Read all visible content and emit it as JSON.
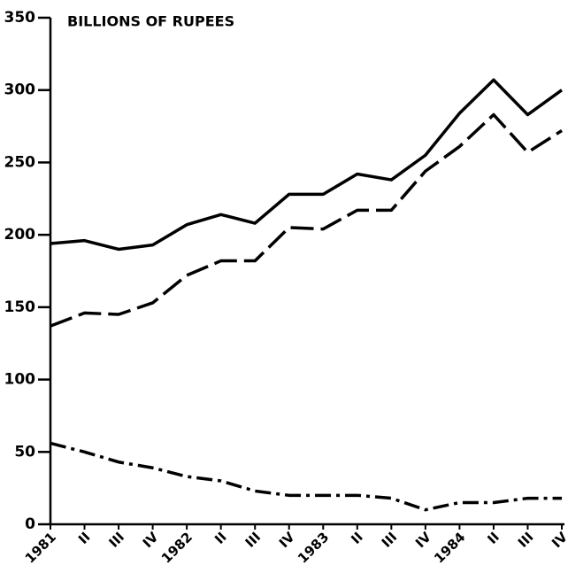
{
  "chart_data": {
    "type": "line",
    "ylabel": "BILLIONS OF RUPEES",
    "categories": [
      "1981",
      "II",
      "III",
      "IV",
      "1982",
      "II",
      "III",
      "IV",
      "1983",
      "II",
      "III",
      "IV",
      "1984",
      "II",
      "III",
      "IV"
    ],
    "series": [
      {
        "color": "#000000",
        "dash": "solid",
        "values": [
          194,
          196,
          190,
          193,
          207,
          214,
          208,
          228,
          228,
          242,
          238,
          255,
          284,
          307,
          283,
          300
        ]
      },
      {
        "color": "#000000",
        "dash": "dashed",
        "values": [
          137,
          146,
          145,
          153,
          172,
          182,
          182,
          205,
          204,
          217,
          217,
          244,
          261,
          283,
          257,
          272
        ]
      },
      {
        "color": "#000000",
        "dash": "dashdot",
        "values": [
          56,
          50,
          43,
          39,
          33,
          30,
          23,
          20,
          20,
          20,
          18,
          10,
          15,
          15,
          18,
          18
        ]
      }
    ],
    "ylim": [
      0,
      350
    ],
    "yticks": [
      0,
      50,
      100,
      150,
      200,
      250,
      300,
      350
    ],
    "grid": false
  }
}
